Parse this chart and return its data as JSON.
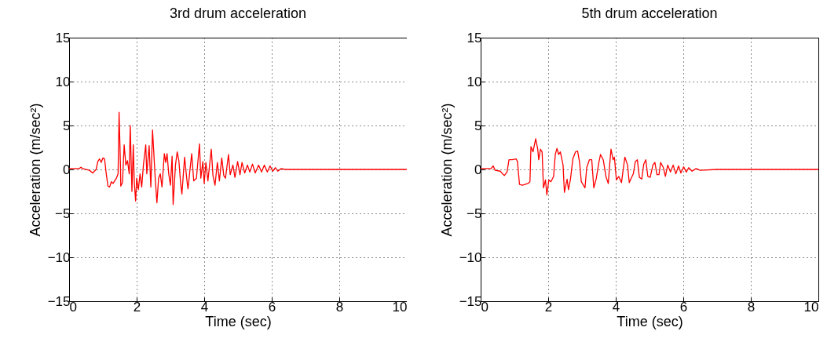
{
  "chart_data": [
    {
      "type": "line",
      "title": "3rd drum acceleration",
      "xlabel": "Time (sec)",
      "ylabel": "Acceleration (m/sec²)",
      "color": "#ff0000",
      "grid": true,
      "xlim": [
        0,
        10
      ],
      "ylim": [
        -15,
        15
      ],
      "xticks": [
        0,
        2,
        4,
        6,
        8,
        10
      ],
      "yticks": [
        -15,
        -10,
        -5,
        0,
        5,
        10,
        15
      ],
      "x": [
        0,
        0.3,
        0.35,
        0.4,
        0.6,
        0.7,
        0.8,
        0.85,
        0.9,
        0.95,
        1.0,
        1.05,
        1.1,
        1.15,
        1.2,
        1.25,
        1.3,
        1.4,
        1.45,
        1.48,
        1.52,
        1.53,
        1.58,
        1.63,
        1.68,
        1.73,
        1.78,
        1.81,
        1.86,
        1.9,
        1.93,
        1.97,
        2.0,
        2.05,
        2.1,
        2.15,
        2.2,
        2.27,
        2.3,
        2.37,
        2.42,
        2.47,
        2.55,
        2.6,
        2.65,
        2.7,
        2.75,
        2.82,
        2.86,
        2.9,
        2.95,
        3.0,
        3.05,
        3.08,
        3.15,
        3.2,
        3.25,
        3.3,
        3.34,
        3.42,
        3.49,
        3.52,
        3.63,
        3.69,
        3.77,
        3.86,
        3.9,
        3.96,
        4.0,
        4.05,
        4.11,
        4.21,
        4.26,
        4.32,
        4.39,
        4.45,
        4.52,
        4.58,
        4.63,
        4.72,
        4.77,
        4.85,
        4.91,
        4.99,
        5.06,
        5.12,
        5.2,
        5.28,
        5.35,
        5.43,
        5.51,
        5.61,
        5.7,
        5.78,
        5.87,
        5.95,
        6.03,
        6.11,
        6.18,
        6.28,
        6.4,
        7,
        8,
        9,
        10
      ],
      "values": [
        0.1,
        0.1,
        0.25,
        0.1,
        -0.1,
        -0.4,
        0,
        0.9,
        1.2,
        0.8,
        1.3,
        1.2,
        -0.5,
        -1.9,
        -2,
        -1.4,
        -1.6,
        -1,
        -0.5,
        6.5,
        0.5,
        -1.9,
        -1.5,
        2.8,
        0.5,
        1,
        -0.5,
        5,
        -2.5,
        2.8,
        -1.5,
        -3.6,
        -1,
        -2.3,
        -0.5,
        -2,
        0.5,
        2.8,
        -0.5,
        2.7,
        -2,
        4.5,
        -1,
        -3.8,
        -1,
        -0.5,
        -2,
        1.8,
        0.8,
        1.8,
        -0.5,
        -1.8,
        1.5,
        -4,
        0.5,
        2,
        1,
        -1.5,
        -2.8,
        1.4,
        -1.3,
        -2.2,
        1.8,
        -1.3,
        -1,
        2.9,
        -1,
        0.9,
        -1.6,
        0.8,
        -1.3,
        2.3,
        -0.7,
        -1.8,
        0.8,
        -1.3,
        1.3,
        -0.7,
        -1,
        1.7,
        -0.6,
        0.5,
        -0.9,
        0.9,
        -0.6,
        0.8,
        -0.4,
        0.5,
        -0.3,
        0.6,
        -0.4,
        0.5,
        -0.3,
        0.5,
        -0.3,
        0.4,
        -0.2,
        0.2,
        -0.2,
        0.1,
        0,
        0,
        0,
        0,
        0
      ]
    },
    {
      "type": "line",
      "title": "5th drum acceleration",
      "xlabel": "Time (sec)",
      "ylabel": "Acceleration (m/sec²)",
      "color": "#ff0000",
      "grid": true,
      "xlim": [
        0,
        10
      ],
      "ylim": [
        -15,
        15
      ],
      "xticks": [
        0,
        2,
        4,
        6,
        8,
        10
      ],
      "yticks": [
        -15,
        -10,
        -5,
        0,
        5,
        10,
        15
      ],
      "x": [
        0,
        0.31,
        0.37,
        0.43,
        0.58,
        0.7,
        0.78,
        0.84,
        0.93,
        1.05,
        1.09,
        1.15,
        1.24,
        1.4,
        1.46,
        1.49,
        1.55,
        1.63,
        1.69,
        1.72,
        1.77,
        1.82,
        1.86,
        1.92,
        1.96,
        2.02,
        2.08,
        2.16,
        2.21,
        2.26,
        2.31,
        2.36,
        2.44,
        2.48,
        2.56,
        2.6,
        2.66,
        2.73,
        2.81,
        2.87,
        2.93,
        2.98,
        3.09,
        3.14,
        3.22,
        3.29,
        3.35,
        3.42,
        3.5,
        3.55,
        3.63,
        3.71,
        3.78,
        3.82,
        3.86,
        3.92,
        3.96,
        4.02,
        4.09,
        4.17,
        4.27,
        4.35,
        4.4,
        4.52,
        4.58,
        4.64,
        4.7,
        4.77,
        4.83,
        4.89,
        4.95,
        5.02,
        5.1,
        5.16,
        5.22,
        5.28,
        5.33,
        5.41,
        5.47,
        5.54,
        5.62,
        5.7,
        5.78,
        5.86,
        5.93,
        6.01,
        6.09,
        6.16,
        6.26,
        6.38,
        6.5,
        7,
        8,
        9,
        10
      ],
      "values": [
        0.1,
        0.1,
        0.4,
        -0.1,
        -0.2,
        -0.7,
        -0.3,
        1.1,
        1.1,
        1.2,
        0.9,
        -1.7,
        -1.8,
        -1.6,
        -1.4,
        2.6,
        2,
        3.5,
        2.3,
        1.1,
        2.3,
        2,
        -2.1,
        -1.2,
        -2.9,
        -1.2,
        -1.4,
        -0.8,
        1.7,
        2.4,
        1.7,
        2,
        0.5,
        -2.6,
        -1.1,
        -2.3,
        -1.1,
        1.2,
        2,
        2.1,
        0.8,
        -1.4,
        -2.1,
        0.2,
        1.1,
        1.1,
        -2.1,
        -1.1,
        0.8,
        1.7,
        1.1,
        -0.8,
        -1.6,
        0.5,
        2.3,
        1.1,
        1.4,
        -1.2,
        -0.8,
        -1.5,
        1.4,
        0.5,
        -1.5,
        -0.5,
        0.9,
        1.1,
        -0.9,
        -1.1,
        0.6,
        1.1,
        -0.8,
        -0.9,
        0.5,
        0.8,
        -0.6,
        -0.6,
        0.8,
        0.2,
        -0.8,
        0.5,
        -0.3,
        0.5,
        -0.5,
        0.4,
        -0.4,
        0.3,
        -0.3,
        0.2,
        -0.2,
        0.1,
        -0.1,
        0,
        0,
        0,
        0
      ]
    }
  ]
}
